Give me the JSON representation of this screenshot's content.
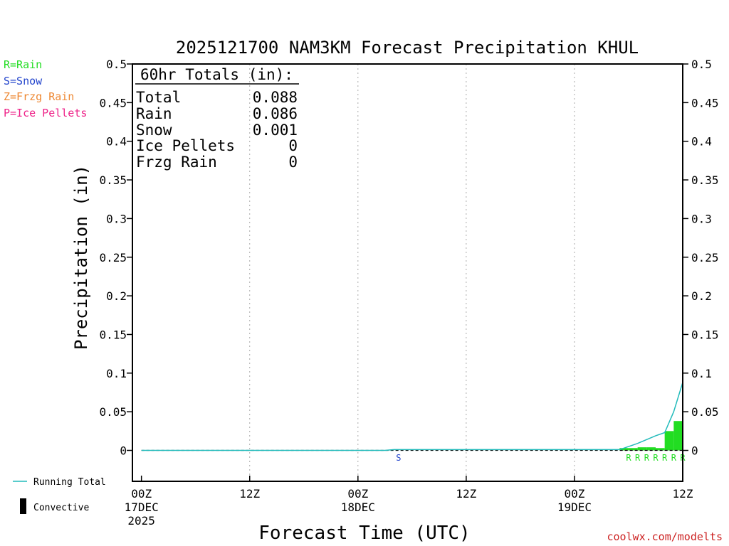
{
  "colors": {
    "rain": "#22dd22",
    "snow": "#2244cc",
    "frzg_rain": "#ee8833",
    "ice_pellets": "#ee2288",
    "running_total": "#22bbbb",
    "convective": "#000000",
    "credit": "#cc2222"
  },
  "legend": {
    "rain": "R=Rain",
    "snow": "S=Snow",
    "frzg_rain": "Z=Frzg Rain",
    "ice_pellets": "P=Ice Pellets",
    "running_total": "Running Total",
    "convective": "Convective"
  },
  "totals": {
    "heading": "60hr Totals (in):",
    "rows": [
      {
        "label": "Total",
        "value": "0.088"
      },
      {
        "label": "Rain",
        "value": "0.086"
      },
      {
        "label": "Snow",
        "value": "0.001"
      },
      {
        "label": "Ice Pellets",
        "value": "0"
      },
      {
        "label": "Frzg Rain",
        "value": "0"
      }
    ]
  },
  "credit": "coolwx.com/modelts",
  "chart_data": {
    "type": "bar",
    "title": "2025121700 NAM3KM Forecast Precipitation KHUL",
    "xlabel": "Forecast Time (UTC)",
    "ylabel": "Precipitation (in)",
    "xlim": [
      -1,
      60
    ],
    "ylim": [
      -0.04,
      0.5
    ],
    "yticks": [
      "0",
      "0.05",
      "0.1",
      "0.15",
      "0.2",
      "0.25",
      "0.3",
      "0.35",
      "0.4",
      "0.45",
      "0.5"
    ],
    "ytick_values": [
      0,
      0.05,
      0.1,
      0.15,
      0.2,
      0.25,
      0.3,
      0.35,
      0.4,
      0.45,
      0.5
    ],
    "xticks": [
      {
        "hour": 0,
        "lines": [
          "00Z",
          "17DEC",
          "2025"
        ]
      },
      {
        "hour": 12,
        "lines": [
          "12Z"
        ]
      },
      {
        "hour": 24,
        "lines": [
          "00Z",
          "18DEC"
        ]
      },
      {
        "hour": 36,
        "lines": [
          "12Z"
        ]
      },
      {
        "hour": 48,
        "lines": [
          "00Z",
          "19DEC"
        ]
      },
      {
        "hour": 60,
        "lines": [
          "12Z"
        ]
      }
    ],
    "gridlines_x": [
      12,
      24,
      36,
      48
    ],
    "bars": [
      {
        "start": 53,
        "end": 54,
        "value": 0.003
      },
      {
        "start": 54,
        "end": 55,
        "value": 0.003
      },
      {
        "start": 55,
        "end": 56,
        "value": 0.004
      },
      {
        "start": 56,
        "end": 57,
        "value": 0.004
      },
      {
        "start": 57,
        "end": 58,
        "value": 0.003
      },
      {
        "start": 58,
        "end": 59,
        "value": 0.025
      },
      {
        "start": 59,
        "end": 60,
        "value": 0.038
      }
    ],
    "running_total": {
      "hours": [
        0,
        27,
        28,
        53,
        54,
        55,
        56,
        57,
        58,
        59,
        60
      ],
      "values": [
        0,
        0,
        0.001,
        0.001,
        0.005,
        0.009,
        0.014,
        0.019,
        0.023,
        0.05,
        0.088
      ]
    },
    "ptype_labels": [
      {
        "hour": 28.5,
        "label": "S",
        "kind": "snow"
      },
      {
        "hour": 54,
        "label": "R",
        "kind": "rain"
      },
      {
        "hour": 55,
        "label": "R",
        "kind": "rain"
      },
      {
        "hour": 56,
        "label": "R",
        "kind": "rain"
      },
      {
        "hour": 57,
        "label": "R",
        "kind": "rain"
      },
      {
        "hour": 58,
        "label": "R",
        "kind": "rain"
      },
      {
        "hour": 59,
        "label": "R",
        "kind": "rain"
      },
      {
        "hour": 60,
        "label": "R",
        "kind": "rain"
      }
    ]
  }
}
